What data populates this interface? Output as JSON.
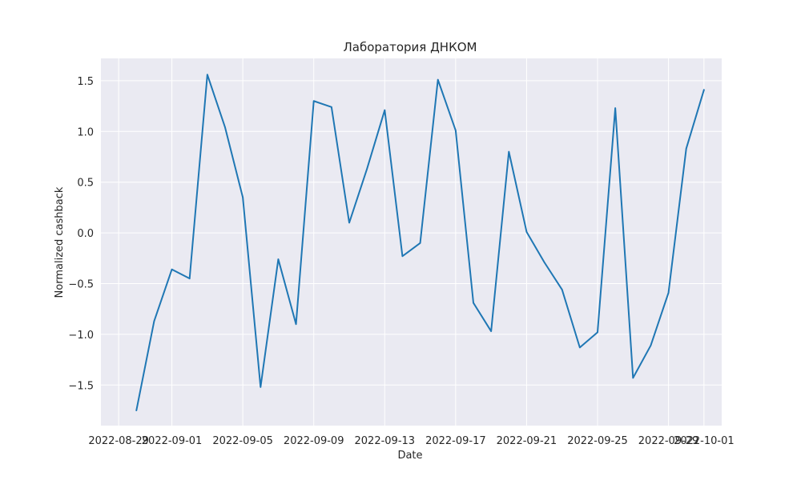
{
  "chart_data": {
    "type": "line",
    "title": "Лаборатория ДНКОМ",
    "xlabel": "Date",
    "ylabel": "Normalized cashback",
    "x_ticks": [
      "2022-08-29",
      "2022-09-01",
      "2022-09-05",
      "2022-09-09",
      "2022-09-13",
      "2022-09-17",
      "2022-09-21",
      "2022-09-25",
      "2022-09-29",
      "2022-10-01"
    ],
    "y_ticks": [
      "−1.5",
      "−1.0",
      "−0.5",
      "0.0",
      "0.5",
      "1.0",
      "1.5"
    ],
    "xlim": [
      "2022-08-28",
      "2022-10-02"
    ],
    "ylim": [
      -1.9,
      1.72
    ],
    "grid": true,
    "colors": {
      "line": "#1f77b4",
      "background": "#eaeaf2",
      "grid": "#ffffff"
    },
    "series": [
      {
        "x": [
          "2022-08-30",
          "2022-08-31",
          "2022-09-01",
          "2022-09-02",
          "2022-09-03",
          "2022-09-04",
          "2022-09-05",
          "2022-09-06",
          "2022-09-07",
          "2022-09-08",
          "2022-09-09",
          "2022-09-10",
          "2022-09-11",
          "2022-09-12",
          "2022-09-13",
          "2022-09-14",
          "2022-09-15",
          "2022-09-16",
          "2022-09-17",
          "2022-09-18",
          "2022-09-19",
          "2022-09-20",
          "2022-09-21",
          "2022-09-22",
          "2022-09-23",
          "2022-09-24",
          "2022-09-25",
          "2022-09-26",
          "2022-09-27",
          "2022-09-28",
          "2022-09-29",
          "2022-09-30",
          "2022-10-01"
        ],
        "values": [
          -1.75,
          -0.87,
          -0.36,
          -0.45,
          1.56,
          1.04,
          0.35,
          -1.52,
          -0.26,
          -0.9,
          1.3,
          1.24,
          0.1,
          0.63,
          1.21,
          -0.23,
          -0.1,
          1.51,
          1.01,
          -0.69,
          -0.97,
          0.8,
          0.01,
          -0.29,
          -0.56,
          -1.13,
          -0.98,
          1.23,
          -1.43,
          -1.11,
          -0.59,
          0.83,
          1.41
        ]
      }
    ]
  }
}
